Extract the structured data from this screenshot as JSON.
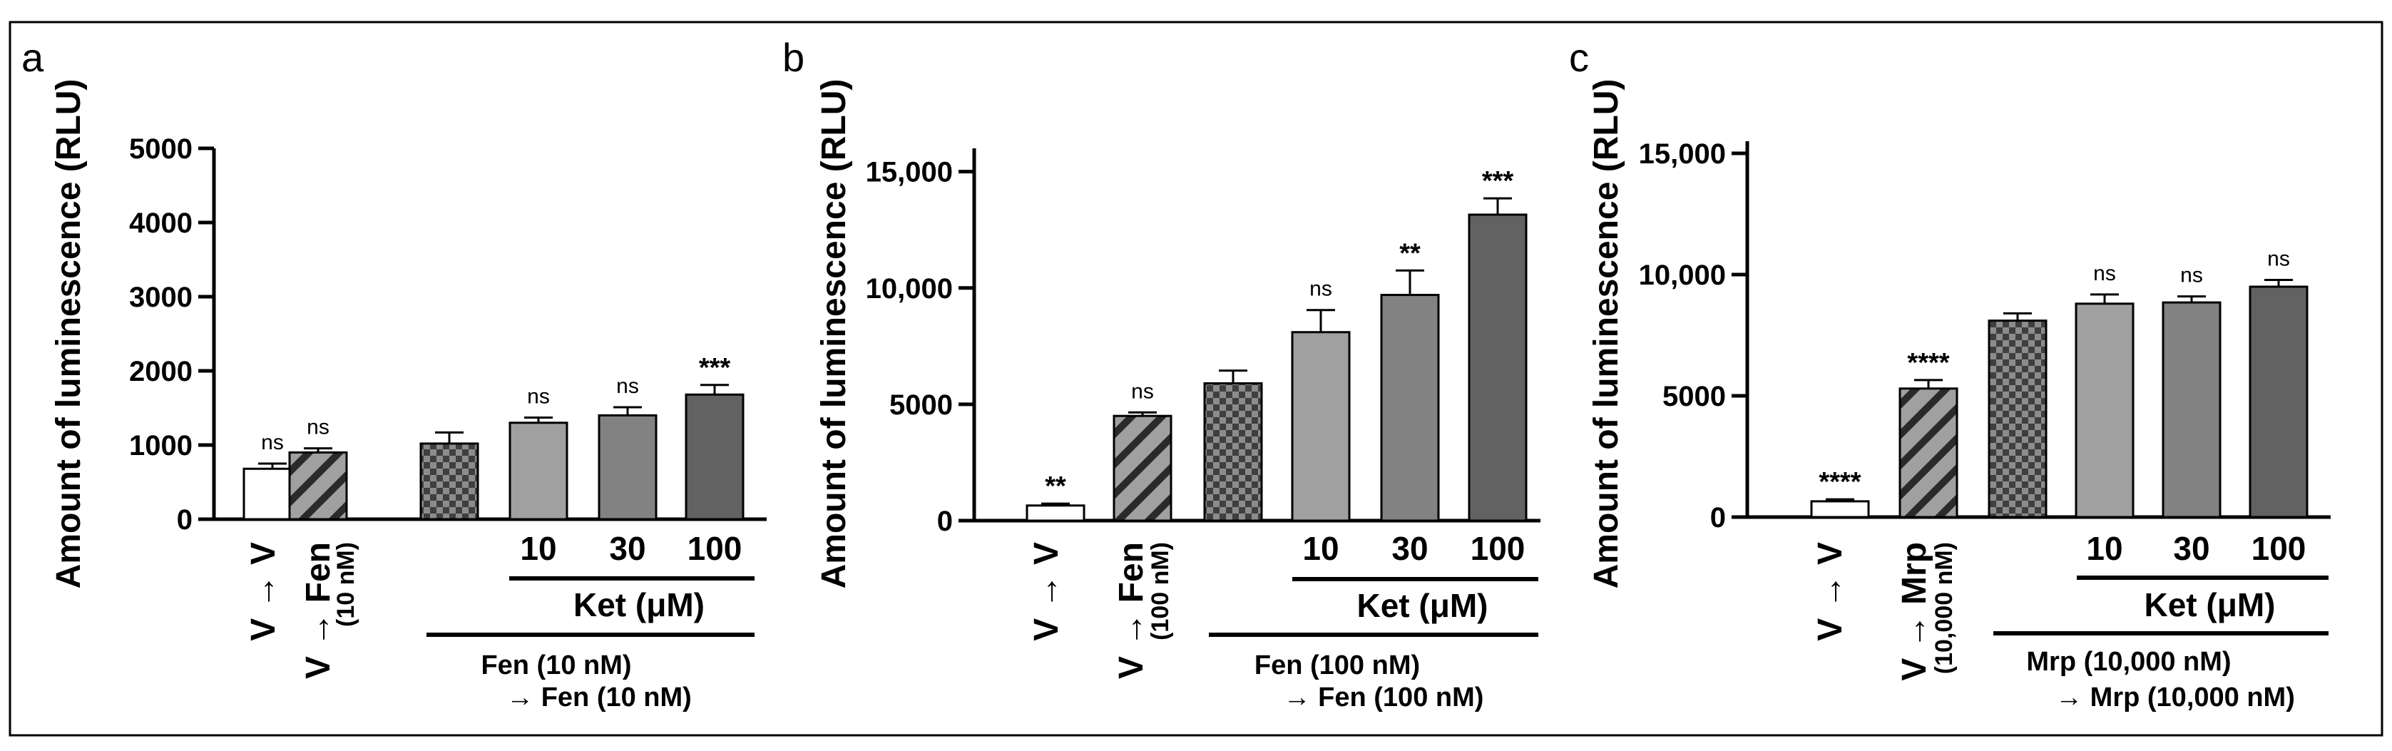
{
  "panel_letters": [
    "a",
    "b",
    "c"
  ],
  "colors": {
    "v_bar": "#ffffff",
    "stripe_dark": "#2a2a2a",
    "stripe_light": "#a0a0a0",
    "check_dark": "#3f3f3f",
    "check_light": "#8c8c8c",
    "ket10": "#a0a0a0",
    "ket30": "#828282",
    "ket100": "#626262",
    "axis": "#000000"
  },
  "chart_data": [
    {
      "type": "bar",
      "panel": "a",
      "ylabel": "Amount of luminescence (RLU)",
      "ylim": [
        0,
        5000
      ],
      "yticks": [
        "0",
        "1000",
        "2000",
        "3000",
        "4000",
        "5000"
      ],
      "categories": [
        "V → V",
        "V → Fen (10 nM)",
        "Fen (10 nM) → Fen (10 nM)",
        "10",
        "30",
        "100"
      ],
      "values": [
        680,
        900,
        1020,
        1300,
        1400,
        1680
      ],
      "errors": [
        70,
        55,
        150,
        70,
        110,
        130
      ],
      "significance": [
        "ns",
        "ns",
        "",
        "ns",
        "ns",
        "***"
      ],
      "labels": {
        "vv": "V → V",
        "v2_main": "V → Fen",
        "v2_sub": "(10 nM)",
        "dose_labels": [
          "10",
          "30",
          "100"
        ],
        "ket": "Ket (μM)",
        "pre_line1": "Fen (10 nM)",
        "pre_line2": "→ Fen (10 nM)"
      }
    },
    {
      "type": "bar",
      "panel": "b",
      "ylabel": "Amount of luminescence (RLU)",
      "ylim": [
        0,
        16000
      ],
      "yticks": [
        "0",
        "5000",
        "10,000",
        "15,000"
      ],
      "categories": [
        "V → V",
        "V → Fen (100 nM)",
        "Fen (100 nM) → Fen (100 nM)",
        "10",
        "30",
        "100"
      ],
      "values": [
        650,
        4500,
        5900,
        8100,
        9700,
        13150
      ],
      "errors": [
        80,
        150,
        550,
        950,
        1050,
        700
      ],
      "significance": [
        "**",
        "ns",
        "",
        "ns",
        "**",
        "***"
      ],
      "labels": {
        "vv": "V → V",
        "v2_main": "V → Fen",
        "v2_sub": "(100 nM)",
        "dose_labels": [
          "10",
          "30",
          "100"
        ],
        "ket": "Ket (μM)",
        "pre_line1": "Fen (100 nM)",
        "pre_line2": "→ Fen (100 nM)"
      }
    },
    {
      "type": "bar",
      "panel": "c",
      "ylabel": "Amount of luminescence (RLU)",
      "ylim": [
        0,
        15500
      ],
      "yticks": [
        "0",
        "5000",
        "10,000",
        "15,000"
      ],
      "categories": [
        "V → V",
        "V → Mrp (10,000 nM)",
        "Mrp (10,000 nM) → Mrp (10,000 nM)",
        "10",
        "30",
        "100"
      ],
      "values": [
        650,
        5300,
        8100,
        8800,
        8850,
        9500
      ],
      "errors": [
        80,
        350,
        300,
        380,
        250,
        280
      ],
      "significance": [
        "****",
        "****",
        "",
        "ns",
        "ns",
        "ns"
      ],
      "labels": {
        "vv": "V → V",
        "v2_main": "V → Mrp",
        "v2_sub": "(10,000 nM)",
        "dose_labels": [
          "10",
          "30",
          "100"
        ],
        "ket": "Ket (μM)",
        "pre_line1": "Mrp (10,000 nM)",
        "pre_line2": "→ Mrp (10,000 nM)"
      }
    }
  ]
}
